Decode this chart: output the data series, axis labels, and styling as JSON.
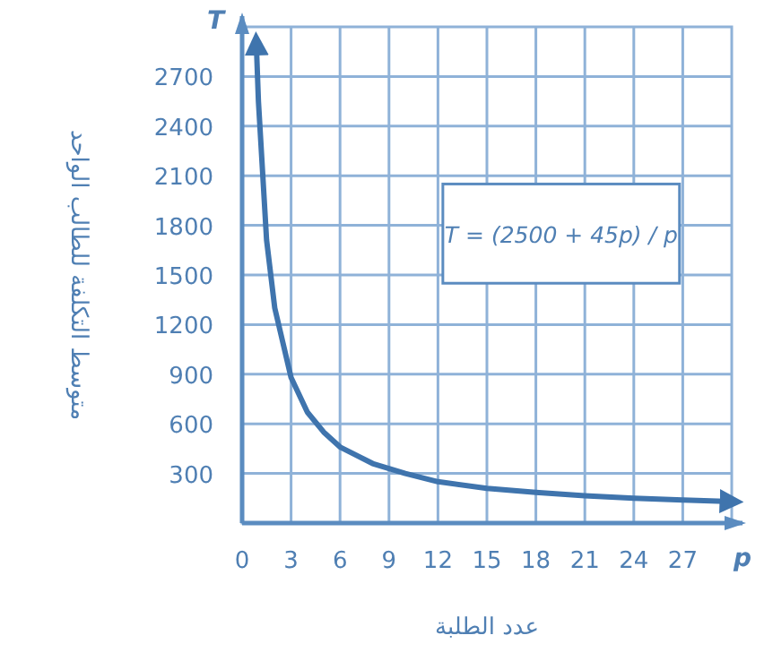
{
  "chart_data": {
    "type": "line",
    "xlabel": "عدد الطلبة",
    "ylabel": "متوسط التكلفة للطالب الواحد",
    "annotations": [
      "T = (2500 + 45p) / p",
      "T",
      "p"
    ],
    "x": [
      0.87,
      1,
      1.5,
      2,
      3,
      4,
      5,
      6,
      8,
      10,
      12,
      15,
      18,
      21,
      24,
      27,
      30
    ],
    "series": [
      {
        "color": "#3f74ad",
        "values": [
          2900,
          2550,
          1710,
          1300,
          880,
          670,
          550,
          460,
          360,
          300,
          250,
          210,
          185,
          165,
          150,
          140,
          130
        ]
      }
    ],
    "xlim": [
      0,
      30
    ],
    "ylim": [
      0,
      3000
    ],
    "xticks": [
      0,
      3,
      6,
      9,
      12,
      15,
      18,
      21,
      24,
      27
    ],
    "yticks": [
      300,
      600,
      900,
      1200,
      1500,
      1800,
      2100,
      2400,
      2700
    ],
    "grid": true,
    "marker": "none",
    "line_style": "solid"
  }
}
